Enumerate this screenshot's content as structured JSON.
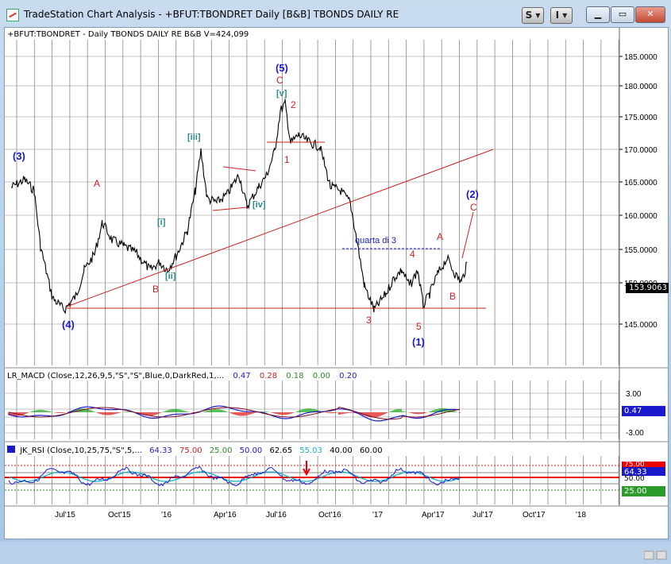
{
  "window": {
    "title": "TradeStation Chart Analysis - +BFUT:TBONDRET Daily [B&B] TBONDS DAILY RE",
    "btn_s": "S ▾",
    "btn_i": "I ▾",
    "minimize_icon": "minimize-icon",
    "restore_icon": "restore-icon",
    "close_icon": "close-icon"
  },
  "price_header": "+BFUT:TBONDRET - Daily  TBONDS DAILY RE  B&B  V=424,099",
  "macd_header": {
    "label": "LR_MACD (Close,12,26,9,5,\"S\",\"S\",Blue,0,DarkRed,1,...",
    "v1": "0.47",
    "v2": "0.28",
    "v3": "0.18",
    "v4": "0.00",
    "v5": "0.20"
  },
  "rsi_header": {
    "label": "JK_RSI (Close,10,25,75,\"S\",5,...",
    "v1": "64.33",
    "v2": "75.00",
    "v3": "25.00",
    "v4": "50.00",
    "v5": "62.65",
    "v6": "55.03",
    "v7": "40.00",
    "v8": "60.00"
  },
  "price_axis": [
    "185.0000",
    "180.0000",
    "175.0000",
    "170.0000",
    "165.0000",
    "160.0000",
    "155.0000",
    "150.0000",
    "145.0000"
  ],
  "last_price": "153.9063",
  "macd_axis": [
    "3.00",
    "-3.00"
  ],
  "macd_last": "0.47",
  "rsi_axis": {
    "r75": "75.00",
    "r64": "64.33",
    "r50": "50.00",
    "r25": "25.00"
  },
  "date_axis": [
    "Jul'15",
    "Oct'15",
    "'16",
    "Apr'16",
    "Jul'16",
    "Oct'16",
    "'17",
    "Apr'17",
    "Jul'17",
    "Oct'17",
    "'18"
  ],
  "annotations": {
    "w3": "(3)",
    "w4": "(4)",
    "w5": "(5)",
    "w1": "(1)",
    "w2": "(2)",
    "A1": "A",
    "B1": "B",
    "C1": "C",
    "i": "[i]",
    "ii": "[ii]",
    "iii": "[iii]",
    "iv": "[iv]",
    "v": "[v]",
    "n1": "1",
    "n2": "2",
    "n3": "3",
    "n4": "4",
    "n5": "5",
    "A2": "A",
    "B2": "B",
    "C2": "C",
    "quarta": "quarta di 3"
  },
  "colors": {
    "wave_blue": "#1a1acc",
    "wave_red": "#d42020",
    "wave_teal": "#2a8a8a",
    "trend": "#cc2222",
    "grid": "#888888"
  }
}
